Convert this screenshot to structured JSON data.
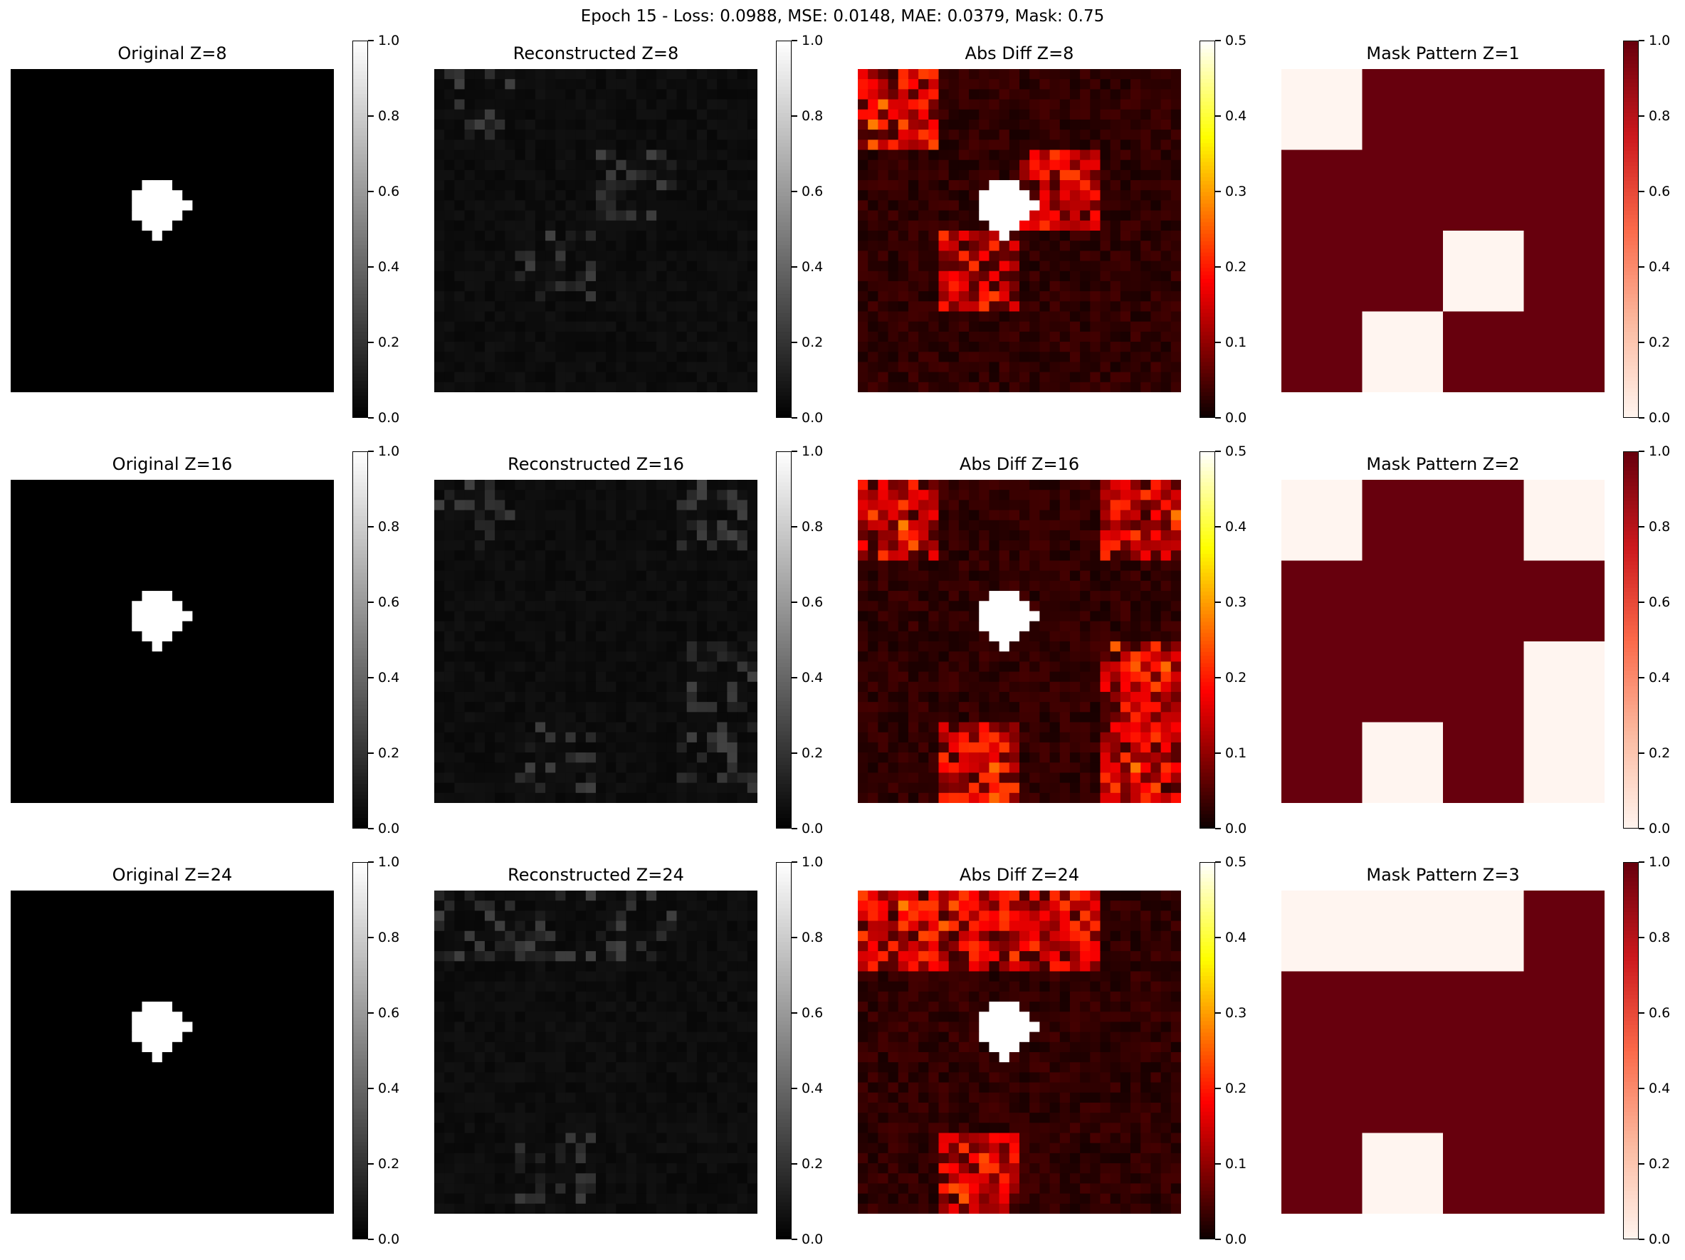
{
  "figure": {
    "title": "Epoch 15 - Loss: 0.0988, MSE: 0.0148, MAE: 0.0379, Mask: 0.75"
  },
  "chart_data": [
    {
      "type": "heatmap",
      "title": "Original Z=8",
      "colormap": "gray",
      "vmin": 0,
      "vmax": 1,
      "cbar_ticks": [
        "0.0",
        "0.2",
        "0.4",
        "0.6",
        "0.8",
        "1.0"
      ],
      "grid_size": [
        32,
        32
      ],
      "mask": [
        1,
        1,
        1,
        1
      ]
    },
    {
      "type": "heatmap",
      "title": "Reconstructed Z=8",
      "colormap": "gray",
      "vmin": 0,
      "vmax": 1,
      "cbar_ticks": [
        "0.0",
        "0.2",
        "0.4",
        "0.6",
        "0.8",
        "1.0"
      ],
      "grid_size": [
        32,
        32
      ],
      "masked_blocks": [
        0,
        6,
        9
      ]
    },
    {
      "type": "heatmap",
      "title": "Abs Diff Z=8",
      "colormap": "hot",
      "vmin": 0,
      "vmax": 0.5,
      "cbar_ticks": [
        "0.0",
        "0.1",
        "0.2",
        "0.3",
        "0.4",
        "0.5"
      ],
      "grid_size": [
        32,
        32
      ],
      "masked_blocks": [
        0,
        6,
        9
      ]
    },
    {
      "type": "heatmap",
      "title": "Mask Pattern Z=1",
      "colormap": "reds",
      "vmin": 0,
      "vmax": 1,
      "cbar_ticks": [
        "0.0",
        "0.2",
        "0.4",
        "0.6",
        "0.8",
        "1.0"
      ],
      "grid_size": [
        4,
        4
      ],
      "values": [
        [
          0,
          1,
          1,
          1
        ],
        [
          1,
          1,
          1,
          1
        ],
        [
          1,
          1,
          0,
          1
        ],
        [
          1,
          0,
          1,
          1
        ]
      ]
    },
    {
      "type": "heatmap",
      "title": "Original Z=16",
      "colormap": "gray",
      "vmin": 0,
      "vmax": 1,
      "cbar_ticks": [
        "0.0",
        "0.2",
        "0.4",
        "0.6",
        "0.8",
        "1.0"
      ],
      "grid_size": [
        32,
        32
      ]
    },
    {
      "type": "heatmap",
      "title": "Reconstructed Z=16",
      "colormap": "gray",
      "vmin": 0,
      "vmax": 1,
      "cbar_ticks": [
        "0.0",
        "0.2",
        "0.4",
        "0.6",
        "0.8",
        "1.0"
      ],
      "grid_size": [
        32,
        32
      ],
      "masked_blocks": [
        0,
        3,
        11,
        13,
        15
      ]
    },
    {
      "type": "heatmap",
      "title": "Abs Diff Z=16",
      "colormap": "hot",
      "vmin": 0,
      "vmax": 0.5,
      "cbar_ticks": [
        "0.0",
        "0.1",
        "0.2",
        "0.3",
        "0.4",
        "0.5"
      ],
      "grid_size": [
        32,
        32
      ],
      "masked_blocks": [
        0,
        3,
        11,
        13,
        15
      ]
    },
    {
      "type": "heatmap",
      "title": "Mask Pattern Z=2",
      "colormap": "reds",
      "vmin": 0,
      "vmax": 1,
      "cbar_ticks": [
        "0.0",
        "0.2",
        "0.4",
        "0.6",
        "0.8",
        "1.0"
      ],
      "grid_size": [
        4,
        4
      ],
      "values": [
        [
          0,
          1,
          1,
          0
        ],
        [
          1,
          1,
          1,
          1
        ],
        [
          1,
          1,
          1,
          0
        ],
        [
          1,
          0,
          1,
          0
        ]
      ]
    },
    {
      "type": "heatmap",
      "title": "Original Z=24",
      "colormap": "gray",
      "vmin": 0,
      "vmax": 1,
      "cbar_ticks": [
        "0.0",
        "0.2",
        "0.4",
        "0.6",
        "0.8",
        "1.0"
      ],
      "grid_size": [
        32,
        32
      ]
    },
    {
      "type": "heatmap",
      "title": "Reconstructed Z=24",
      "colormap": "gray",
      "vmin": 0,
      "vmax": 1,
      "cbar_ticks": [
        "0.0",
        "0.2",
        "0.4",
        "0.6",
        "0.8",
        "1.0"
      ],
      "grid_size": [
        32,
        32
      ],
      "masked_blocks": [
        0,
        1,
        2,
        13
      ]
    },
    {
      "type": "heatmap",
      "title": "Abs Diff Z=24",
      "colormap": "hot",
      "vmin": 0,
      "vmax": 0.5,
      "cbar_ticks": [
        "0.0",
        "0.1",
        "0.2",
        "0.3",
        "0.4",
        "0.5"
      ],
      "grid_size": [
        32,
        32
      ],
      "masked_blocks": [
        0,
        1,
        2,
        13
      ]
    },
    {
      "type": "heatmap",
      "title": "Mask Pattern Z=3",
      "colormap": "reds",
      "vmin": 0,
      "vmax": 1,
      "cbar_ticks": [
        "0.0",
        "0.2",
        "0.4",
        "0.6",
        "0.8",
        "1.0"
      ],
      "grid_size": [
        4,
        4
      ],
      "values": [
        [
          0,
          0,
          0,
          1
        ],
        [
          1,
          1,
          1,
          1
        ],
        [
          1,
          1,
          1,
          1
        ],
        [
          1,
          0,
          1,
          1
        ]
      ]
    }
  ]
}
